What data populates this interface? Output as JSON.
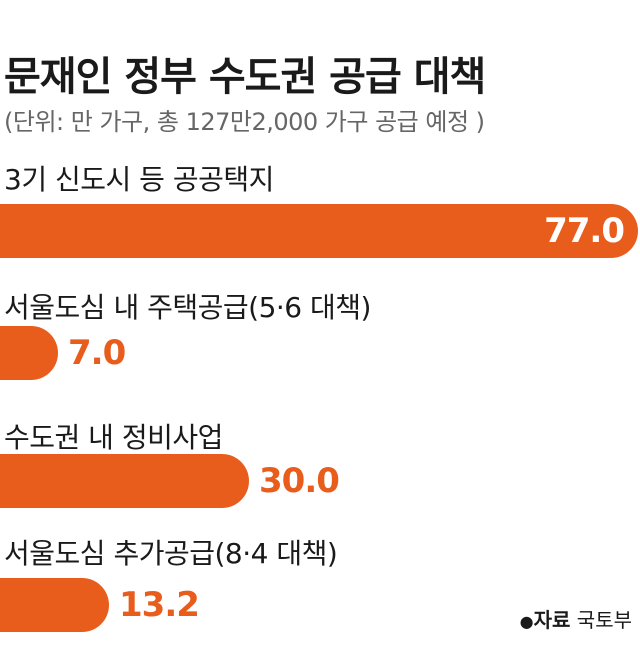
{
  "colors": {
    "bar": "#e85d1c",
    "value_inside": "#ffffff",
    "value_outside": "#e85d1c"
  },
  "source": {
    "marker": "●",
    "label": "자료",
    "name": "국토부"
  },
  "chart_data": {
    "type": "bar",
    "orientation": "horizontal",
    "title": "문재인 정부 수도권 공급 대책",
    "subtitle": "(단위: 만 가구, 총 127만2,000 가구 공급 예정 )",
    "categories": [
      "3기 신도시 등 공공택지",
      "서울도심 내 주택공급(5·6 대책)",
      "수도권 내 정비사업",
      "서울도심 추가공급(8·4 대책)"
    ],
    "values": [
      77.0,
      7.0,
      30.0,
      13.2
    ],
    "value_labels": [
      "77.0",
      "7.0",
      "30.0",
      "13.2"
    ],
    "xlim": [
      0,
      77.0
    ],
    "grid": false,
    "legend": "none"
  }
}
